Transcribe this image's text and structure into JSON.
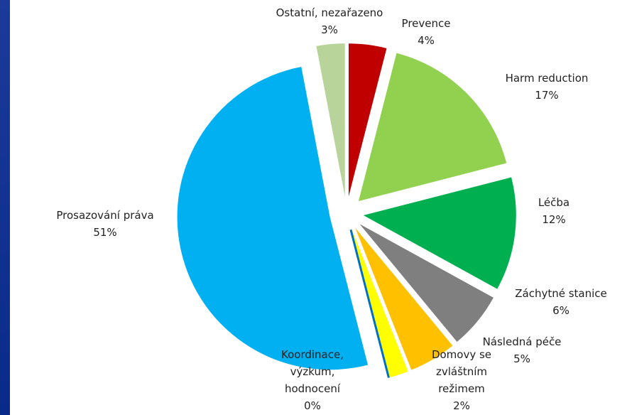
{
  "chart_data": {
    "type": "pie",
    "categories": [
      "Prevence",
      "Harm reduction",
      "Léčba",
      "Záchytné stanice",
      "Následná péče",
      "Domovy se zvláštním režimem",
      "Koordinace, výzkum, hodnocení",
      "Prosazování práva",
      "Ostatní, nezařazeno"
    ],
    "values": [
      4,
      17,
      12,
      6,
      5,
      2,
      0,
      51,
      3
    ],
    "value_labels": [
      "4%",
      "17%",
      "12%",
      "6%",
      "5%",
      "2%",
      "0%",
      "51%",
      "3%"
    ],
    "colors": [
      "#c00000",
      "#92d050",
      "#00b050",
      "#7f7f7f",
      "#ffc000",
      "#ffff00",
      "#0070c0",
      "#00b0f0",
      "#b9d49b"
    ]
  }
}
